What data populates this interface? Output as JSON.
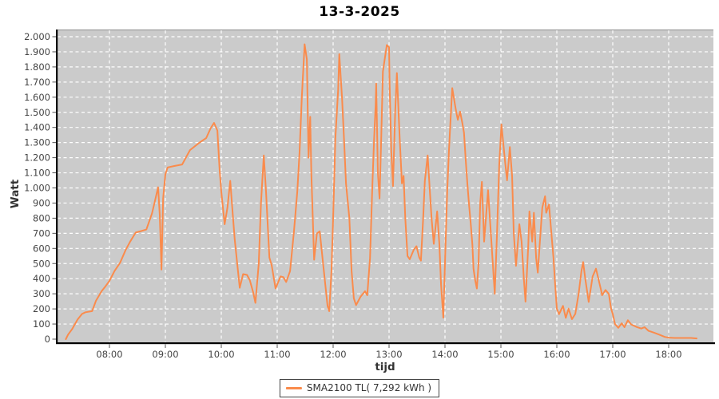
{
  "title": "13-3-2025",
  "colors": {
    "series_orange": "#fa8b4c",
    "plot_background": "#cbcbcb",
    "gridline": "#ffffff",
    "axis_line": "#000000",
    "plot_top_border": "#8e8e8e",
    "tick_text": "#454545"
  },
  "legend": {
    "label": "SMA2100 TL( 7,292 kWh )"
  },
  "chart_data": {
    "type": "line",
    "title": "13-3-2025",
    "xlabel": "tijd",
    "ylabel": "Watt",
    "ylim": [
      0,
      2047
    ],
    "xlim_hours": [
      7.07,
      18.8
    ],
    "grid": {
      "style": "dashed",
      "color": "#ffffff",
      "background": "#cbcbcb"
    },
    "legend_position": "bottom-center",
    "x_ticks": [
      {
        "h": 8,
        "label": "08:00"
      },
      {
        "h": 9,
        "label": "09:00"
      },
      {
        "h": 10,
        "label": "10:00"
      },
      {
        "h": 11,
        "label": "11:00"
      },
      {
        "h": 12,
        "label": "12:00"
      },
      {
        "h": 13,
        "label": "13:00"
      },
      {
        "h": 14,
        "label": "14:00"
      },
      {
        "h": 15,
        "label": "15:00"
      },
      {
        "h": 16,
        "label": "16:00"
      },
      {
        "h": 17,
        "label": "17:00"
      },
      {
        "h": 18,
        "label": "18:00"
      }
    ],
    "y_ticks": [
      {
        "v": 0,
        "label": "0"
      },
      {
        "v": 100,
        "label": "100"
      },
      {
        "v": 200,
        "label": "200"
      },
      {
        "v": 300,
        "label": "300"
      },
      {
        "v": 400,
        "label": "400"
      },
      {
        "v": 500,
        "label": "500"
      },
      {
        "v": 600,
        "label": "600"
      },
      {
        "v": 700,
        "label": "700"
      },
      {
        "v": 800,
        "label": "800"
      },
      {
        "v": 900,
        "label": "900"
      },
      {
        "v": 1000,
        "label": "1.000"
      },
      {
        "v": 1100,
        "label": "1.100"
      },
      {
        "v": 1200,
        "label": "1.200"
      },
      {
        "v": 1300,
        "label": "1.300"
      },
      {
        "v": 1400,
        "label": "1.400"
      },
      {
        "v": 1500,
        "label": "1.500"
      },
      {
        "v": 1600,
        "label": "1.600"
      },
      {
        "v": 1700,
        "label": "1.700"
      },
      {
        "v": 1800,
        "label": "1.800"
      },
      {
        "v": 1900,
        "label": "1.900"
      },
      {
        "v": 2000,
        "label": "2.000"
      }
    ],
    "series": [
      {
        "name": "SMA2100 TL( 7,292 kWh )",
        "color": "#fa8b4c",
        "points": [
          [
            7.22,
            0
          ],
          [
            7.26,
            30
          ],
          [
            7.33,
            65
          ],
          [
            7.43,
            130
          ],
          [
            7.51,
            167
          ],
          [
            7.57,
            178
          ],
          [
            7.69,
            185
          ],
          [
            7.76,
            255
          ],
          [
            7.86,
            317
          ],
          [
            7.93,
            350
          ],
          [
            8.0,
            385
          ],
          [
            8.09,
            450
          ],
          [
            8.19,
            505
          ],
          [
            8.29,
            590
          ],
          [
            8.37,
            645
          ],
          [
            8.47,
            705
          ],
          [
            8.57,
            715
          ],
          [
            8.66,
            725
          ],
          [
            8.76,
            830
          ],
          [
            8.83,
            940
          ],
          [
            8.87,
            1005
          ],
          [
            8.9,
            820
          ],
          [
            8.93,
            460
          ],
          [
            8.96,
            930
          ],
          [
            9.0,
            1090
          ],
          [
            9.04,
            1135
          ],
          [
            9.16,
            1145
          ],
          [
            9.3,
            1155
          ],
          [
            9.44,
            1250
          ],
          [
            9.61,
            1300
          ],
          [
            9.73,
            1330
          ],
          [
            9.81,
            1395
          ],
          [
            9.87,
            1430
          ],
          [
            9.93,
            1380
          ],
          [
            9.97,
            1120
          ],
          [
            10.0,
            975
          ],
          [
            10.06,
            760
          ],
          [
            10.11,
            870
          ],
          [
            10.16,
            1047
          ],
          [
            10.2,
            850
          ],
          [
            10.24,
            660
          ],
          [
            10.29,
            480
          ],
          [
            10.33,
            340
          ],
          [
            10.39,
            430
          ],
          [
            10.46,
            425
          ],
          [
            10.51,
            390
          ],
          [
            10.57,
            310
          ],
          [
            10.61,
            240
          ],
          [
            10.67,
            500
          ],
          [
            10.71,
            900
          ],
          [
            10.76,
            1215
          ],
          [
            10.8,
            975
          ],
          [
            10.86,
            540
          ],
          [
            10.9,
            490
          ],
          [
            10.97,
            335
          ],
          [
            11.06,
            415
          ],
          [
            11.11,
            410
          ],
          [
            11.16,
            378
          ],
          [
            11.23,
            450
          ],
          [
            11.3,
            715
          ],
          [
            11.36,
            980
          ],
          [
            11.4,
            1240
          ],
          [
            11.44,
            1600
          ],
          [
            11.49,
            1950
          ],
          [
            11.53,
            1850
          ],
          [
            11.56,
            1200
          ],
          [
            11.59,
            1470
          ],
          [
            11.61,
            1100
          ],
          [
            11.66,
            525
          ],
          [
            11.71,
            700
          ],
          [
            11.76,
            713
          ],
          [
            11.8,
            572
          ],
          [
            11.86,
            360
          ],
          [
            11.9,
            220
          ],
          [
            11.93,
            185
          ],
          [
            11.97,
            450
          ],
          [
            12.0,
            800
          ],
          [
            12.04,
            1330
          ],
          [
            12.09,
            1650
          ],
          [
            12.11,
            1885
          ],
          [
            12.16,
            1590
          ],
          [
            12.2,
            1280
          ],
          [
            12.23,
            1030
          ],
          [
            12.29,
            800
          ],
          [
            12.33,
            450
          ],
          [
            12.37,
            270
          ],
          [
            12.41,
            225
          ],
          [
            12.49,
            280
          ],
          [
            12.57,
            317
          ],
          [
            12.61,
            290
          ],
          [
            12.66,
            537
          ],
          [
            12.7,
            1000
          ],
          [
            12.73,
            1300
          ],
          [
            12.76,
            1550
          ],
          [
            12.77,
            1690
          ],
          [
            12.8,
            1100
          ],
          [
            12.83,
            930
          ],
          [
            12.86,
            1330
          ],
          [
            12.89,
            1770
          ],
          [
            12.96,
            1945
          ],
          [
            13.0,
            1930
          ],
          [
            13.01,
            1680
          ],
          [
            13.04,
            1240
          ],
          [
            13.07,
            1012
          ],
          [
            13.11,
            1505
          ],
          [
            13.14,
            1760
          ],
          [
            13.19,
            1330
          ],
          [
            13.23,
            1030
          ],
          [
            13.26,
            1080
          ],
          [
            13.29,
            800
          ],
          [
            13.33,
            550
          ],
          [
            13.37,
            528
          ],
          [
            13.44,
            590
          ],
          [
            13.49,
            615
          ],
          [
            13.54,
            540
          ],
          [
            13.57,
            519
          ],
          [
            13.61,
            800
          ],
          [
            13.64,
            1047
          ],
          [
            13.69,
            1215
          ],
          [
            13.73,
            977
          ],
          [
            13.76,
            800
          ],
          [
            13.8,
            630
          ],
          [
            13.86,
            845
          ],
          [
            13.9,
            625
          ],
          [
            13.93,
            360
          ],
          [
            13.97,
            142
          ],
          [
            14.01,
            625
          ],
          [
            14.04,
            977
          ],
          [
            14.07,
            1240
          ],
          [
            14.1,
            1452
          ],
          [
            14.13,
            1660
          ],
          [
            14.17,
            1570
          ],
          [
            14.2,
            1505
          ],
          [
            14.23,
            1450
          ],
          [
            14.27,
            1505
          ],
          [
            14.31,
            1430
          ],
          [
            14.34,
            1365
          ],
          [
            14.37,
            1190
          ],
          [
            14.4,
            1030
          ],
          [
            14.43,
            890
          ],
          [
            14.46,
            766
          ],
          [
            14.49,
            625
          ],
          [
            14.51,
            466
          ],
          [
            14.54,
            390
          ],
          [
            14.57,
            335
          ],
          [
            14.6,
            500
          ],
          [
            14.63,
            900
          ],
          [
            14.66,
            1040
          ],
          [
            14.7,
            645
          ],
          [
            14.77,
            985
          ],
          [
            14.83,
            645
          ],
          [
            14.89,
            300
          ],
          [
            14.93,
            695
          ],
          [
            14.97,
            1153
          ],
          [
            15.01,
            1420
          ],
          [
            15.07,
            1190
          ],
          [
            15.11,
            1050
          ],
          [
            15.16,
            1270
          ],
          [
            15.2,
            1080
          ],
          [
            15.23,
            700
          ],
          [
            15.27,
            485
          ],
          [
            15.33,
            760
          ],
          [
            15.37,
            645
          ],
          [
            15.41,
            400
          ],
          [
            15.44,
            248
          ],
          [
            15.49,
            625
          ],
          [
            15.51,
            845
          ],
          [
            15.56,
            645
          ],
          [
            15.59,
            836
          ],
          [
            15.63,
            537
          ],
          [
            15.66,
            440
          ],
          [
            15.7,
            660
          ],
          [
            15.74,
            870
          ],
          [
            15.79,
            945
          ],
          [
            15.81,
            836
          ],
          [
            15.86,
            890
          ],
          [
            15.9,
            713
          ],
          [
            15.94,
            537
          ],
          [
            15.97,
            361
          ],
          [
            16.0,
            202
          ],
          [
            16.04,
            165
          ],
          [
            16.11,
            220
          ],
          [
            16.16,
            141
          ],
          [
            16.21,
            202
          ],
          [
            16.27,
            132
          ],
          [
            16.33,
            167
          ],
          [
            16.39,
            300
          ],
          [
            16.44,
            450
          ],
          [
            16.47,
            510
          ],
          [
            16.51,
            396
          ],
          [
            16.57,
            246
          ],
          [
            16.64,
            414
          ],
          [
            16.7,
            466
          ],
          [
            16.79,
            326
          ],
          [
            16.81,
            290
          ],
          [
            16.87,
            325
          ],
          [
            16.93,
            299
          ],
          [
            16.97,
            202
          ],
          [
            17.0,
            167
          ],
          [
            17.04,
            100
          ],
          [
            17.1,
            75
          ],
          [
            17.16,
            105
          ],
          [
            17.21,
            79
          ],
          [
            17.27,
            125
          ],
          [
            17.33,
            97
          ],
          [
            17.43,
            80
          ],
          [
            17.51,
            70
          ],
          [
            17.57,
            79
          ],
          [
            17.64,
            55
          ],
          [
            17.73,
            44
          ],
          [
            17.83,
            30
          ],
          [
            17.93,
            15
          ],
          [
            18.0,
            10
          ],
          [
            18.11,
            8
          ],
          [
            18.26,
            8
          ],
          [
            18.4,
            8
          ],
          [
            18.5,
            5
          ]
        ]
      }
    ]
  }
}
